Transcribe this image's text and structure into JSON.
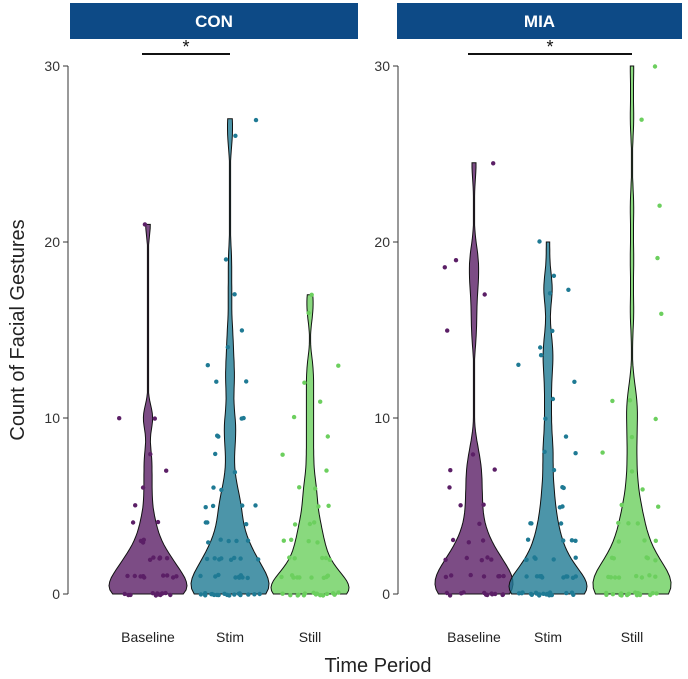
{
  "chart_data": {
    "type": "violin",
    "x_axis_title": "Time Period",
    "y_axis_title": "Count of Facial Gestures",
    "ylim": [
      0,
      30
    ],
    "y_ticks": [
      "0",
      "10",
      "20",
      "30"
    ],
    "categories": [
      "Baseline",
      "Stim",
      "Still"
    ],
    "colors": {
      "Baseline": "#5b1f66",
      "Stim": "#1f7a94",
      "Still": "#6ccf5e"
    },
    "panels": [
      {
        "label": "CON",
        "significance": {
          "from": "Baseline",
          "to": "Stim",
          "label": "*"
        },
        "groups": [
          {
            "category": "Baseline",
            "max": 21,
            "values": [
              0,
              0,
              0,
              0,
              0,
              0,
              0,
              0,
              0,
              0,
              0,
              0,
              1,
              1,
              1,
              1,
              1,
              1,
              1,
              1,
              1,
              2,
              2,
              2,
              2,
              2,
              2,
              3,
              3,
              3,
              4,
              4,
              5,
              6,
              7,
              8,
              10,
              10,
              21
            ]
          },
          {
            "category": "Stim",
            "max": 27,
            "values": [
              0,
              0,
              0,
              0,
              0,
              0,
              0,
              0,
              0,
              0,
              0,
              0,
              0,
              0,
              0,
              0,
              0,
              0,
              1,
              1,
              1,
              1,
              1,
              1,
              1,
              1,
              1,
              1,
              2,
              2,
              2,
              2,
              2,
              2,
              2,
              2,
              3,
              3,
              3,
              3,
              3,
              4,
              4,
              4,
              5,
              5,
              5,
              5,
              6,
              6,
              7,
              8,
              9,
              9,
              10,
              10,
              12,
              12,
              13,
              14,
              15,
              17,
              19,
              26,
              27
            ]
          },
          {
            "category": "Still",
            "max": 17,
            "values": [
              0,
              0,
              0,
              0,
              0,
              0,
              0,
              0,
              0,
              0,
              0,
              0,
              0,
              0,
              0,
              1,
              1,
              1,
              1,
              1,
              1,
              1,
              1,
              1,
              2,
              2,
              2,
              2,
              2,
              3,
              3,
              3,
              3,
              4,
              4,
              4,
              5,
              5,
              6,
              6,
              7,
              8,
              9,
              10,
              11,
              12,
              13,
              16,
              17
            ]
          }
        ]
      },
      {
        "label": "MIA",
        "significance": {
          "from": "Baseline",
          "to": "Still",
          "label": "*"
        },
        "groups": [
          {
            "category": "Baseline",
            "max": 24.5,
            "values": [
              0,
              0,
              0,
              0,
              0,
              0,
              0,
              0,
              0,
              0,
              0,
              0,
              1,
              1,
              1,
              1,
              1,
              1,
              1,
              2,
              2,
              2,
              2,
              2,
              3,
              3,
              3,
              4,
              5,
              5,
              6,
              7,
              7,
              8,
              15,
              17,
              18.5,
              19,
              24.5
            ]
          },
          {
            "category": "Stim",
            "max": 20,
            "values": [
              0,
              0,
              0,
              0,
              0,
              0,
              0,
              0,
              0,
              0,
              0,
              0,
              0,
              0,
              0,
              0,
              0,
              0,
              1,
              1,
              1,
              1,
              1,
              1,
              1,
              1,
              1,
              1,
              2,
              2,
              2,
              2,
              2,
              2,
              3,
              3,
              3,
              3,
              4,
              4,
              4,
              5,
              5,
              6,
              6,
              7,
              8,
              8,
              9,
              10,
              11,
              12,
              13,
              13.5,
              14,
              15,
              17,
              17.2,
              18,
              20
            ]
          },
          {
            "category": "Still",
            "max": 30,
            "values": [
              0,
              0,
              0,
              0,
              0,
              0,
              0,
              0,
              0,
              0,
              0,
              0,
              0,
              0,
              0,
              0,
              1,
              1,
              1,
              1,
              1,
              1,
              1,
              1,
              2,
              2,
              2,
              2,
              2,
              3,
              3,
              3,
              4,
              4,
              4,
              5,
              5,
              6,
              7,
              8,
              9,
              10,
              11,
              11,
              16,
              19,
              22,
              27,
              30
            ]
          }
        ]
      }
    ]
  }
}
